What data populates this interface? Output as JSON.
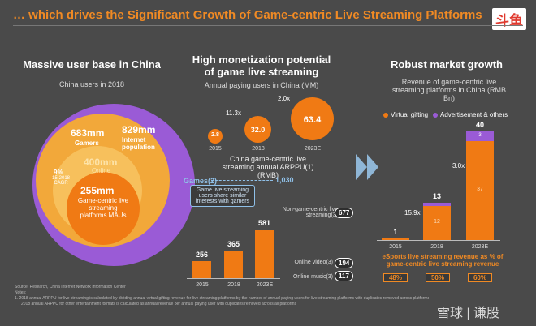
{
  "header": {
    "title": "… which drives the Significant Growth of Game-centric Live Streaming Platforms",
    "logo": "斗鱼"
  },
  "left": {
    "heading": "Massive user base in China",
    "subtitle": "China users in 2018",
    "internet_value": "829mm",
    "internet_label": "Internet population",
    "gamers_value": "683mm",
    "gamers_label": "Gamers",
    "gamers2_value": "400mm",
    "gamers2_label": "Online",
    "cagr_pct": "9%",
    "cagr_label": "15-2018 CAGR",
    "live_value": "255mm",
    "live_label": "Game-centric live streaming platforms MAUs"
  },
  "middle": {
    "heading": "High monetization potential of game live streaming",
    "subtitle": "Annual paying users in China (MM)",
    "bubbles": [
      {
        "value": "2.8",
        "year": "2015"
      },
      {
        "value": "32.0",
        "year": "2018"
      },
      {
        "value": "63.4",
        "year": "2023E"
      }
    ],
    "mult1": "11.3x",
    "mult2": "2.0x",
    "arppu_title": "China game-centric live streaming annual ARPPU(1) (RMB)",
    "games_label": "Games(2)",
    "games_value": "1,030",
    "callout": "Game live streaming users share similar interests with gamers",
    "bars": [
      {
        "value": "256",
        "year": "2015"
      },
      {
        "value": "365",
        "year": "2018"
      },
      {
        "value": "581",
        "year": "2023E"
      }
    ],
    "non_game_label": "Non-game-centric live streaming(3)",
    "non_game_value": "677",
    "video_label": "Online video(3)",
    "video_value": "194",
    "music_label": "Online music(3)",
    "music_value": "117"
  },
  "right": {
    "heading": "Robust market growth",
    "subtitle": "Revenue of game-centric live streaming platforms in China (RMB Bn)",
    "legend": [
      "Virtual gifting",
      "Advertisement & others"
    ],
    "bars": [
      {
        "total": "1",
        "year": "2015"
      },
      {
        "total": "13",
        "year": "2018",
        "inner": "12"
      },
      {
        "total": "40",
        "year": "2023E",
        "inner": "37",
        "ad": "3"
      }
    ],
    "mult1": "15.9x",
    "mult2": "3.0x",
    "esports_title": "eSports live streaming revenue as % of game-centric live streaming revenue",
    "pcts": [
      "48%",
      "50%",
      "60%"
    ]
  },
  "footer": {
    "source": "Source: Research, China Internet Network Information Center",
    "notes_label": "Notes:",
    "note1": "1. 2018 annual ARPPU for live streaming is calculated by dividing annual virtual gifting revenue for live streaming platforms by the number of annual paying users for live streaming platforms with duplicates removed across platforms",
    "note2": "2018 annual ARPPU for other entertainment formats is calculated as annual revenue per annual paying user with duplicates removed across all platforms",
    "watermark": "雪球 | 谦股"
  },
  "colors": {
    "accent": "#f08a24",
    "purple": "#9a5bd6",
    "bar": "#f07a14"
  }
}
